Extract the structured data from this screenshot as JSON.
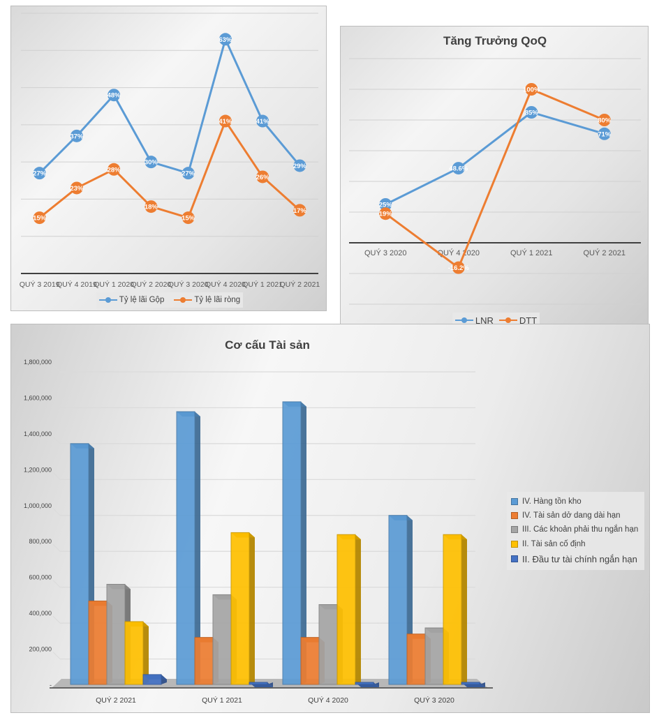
{
  "chart_data": [
    {
      "id": "margin-chart",
      "type": "line",
      "title": "",
      "categories": [
        "QUÝ 3 2019",
        "QUÝ 4 2019",
        "QUÝ 1 2020",
        "QUÝ 2 2020",
        "QUÝ 3 2020",
        "QUÝ 4 2020",
        "QUÝ 1 2021",
        "QUÝ 2 2021"
      ],
      "series": [
        {
          "name": "Tỷ lệ lãi Gộp",
          "color": "#5b9bd5",
          "values": [
            27,
            37,
            48,
            30,
            27,
            63,
            41,
            29
          ],
          "labels": [
            "27%",
            "37%",
            "48%",
            "30%",
            "27%",
            "63%",
            "41%",
            "29%"
          ]
        },
        {
          "name": "Tỷ lệ lãi ròng",
          "color": "#ed7d31",
          "values": [
            15,
            23,
            28,
            18,
            15,
            41,
            26,
            17
          ],
          "labels": [
            "15%",
            "23%",
            "28%",
            "18%",
            "15%",
            "41%",
            "26%",
            "17%"
          ]
        }
      ],
      "ylim": [
        0,
        70
      ],
      "yticks": [
        10,
        20,
        30,
        40,
        50,
        60,
        70
      ],
      "grid": true,
      "legend": "bottom"
    },
    {
      "id": "qoq-chart",
      "type": "line",
      "title": "Tăng Trưởng QoQ",
      "categories": [
        "QUÝ 3 2020",
        "QUÝ 4 2020",
        "QUÝ 1 2021",
        "QUÝ 2 2021"
      ],
      "series": [
        {
          "name": "LNR",
          "color": "#5b9bd5",
          "values": [
            25,
            48.6,
            85,
            71
          ],
          "labels": [
            "25%",
            "48.6%",
            "85%",
            "71%"
          ]
        },
        {
          "name": "DTT",
          "color": "#ed7d31",
          "values": [
            19,
            -16.2,
            100,
            80
          ],
          "labels": [
            "19%",
            "-16.2%",
            "100%",
            "80%"
          ]
        }
      ],
      "ylim": [
        -40,
        120
      ],
      "yticks": [
        -40,
        -20,
        20,
        40,
        60,
        80,
        100,
        120
      ],
      "grid": true,
      "legend": "bottom"
    },
    {
      "id": "asset-chart",
      "type": "bar",
      "title": "Cơ cấu  Tài sản",
      "categories": [
        "QUÝ 2 2021",
        "QUÝ 1 2021",
        "QUÝ 4 2020",
        "QUÝ 3 2020"
      ],
      "series": [
        {
          "name": "IV. Hàng tồn kho",
          "color": "#5b9bd5",
          "values": [
            1342000,
            1520000,
            1575000,
            942000
          ]
        },
        {
          "name": "IV. Tài sản dở dang dài hạn",
          "color": "#ed7d31",
          "values": [
            465000,
            262000,
            262000,
            281000
          ]
        },
        {
          "name": "III. Các khoản phải thu ngắn hạn",
          "color": "#a5a5a5",
          "values": [
            558000,
            500000,
            445000,
            315000
          ]
        },
        {
          "name": "II. Tài sản cố định",
          "color": "#ffc000",
          "values": [
            350000,
            846000,
            835000,
            835000
          ]
        },
        {
          "name": "II. Đầu tư tài chính ngắn hạn",
          "color": "#4472c4",
          "values": [
            55000,
            10000,
            10000,
            10000
          ]
        }
      ],
      "ylim": [
        0,
        1800000
      ],
      "yticks": [
        "-",
        "200,000",
        "400,000",
        "600,000",
        "800,000",
        "1,000,000",
        "1,200,000",
        "1,400,000",
        "1,600,000",
        "1,800,000"
      ],
      "ytick_values": [
        0,
        200000,
        400000,
        600000,
        800000,
        1000000,
        1200000,
        1400000,
        1600000,
        1800000
      ],
      "grid": true,
      "legend": "right"
    }
  ]
}
